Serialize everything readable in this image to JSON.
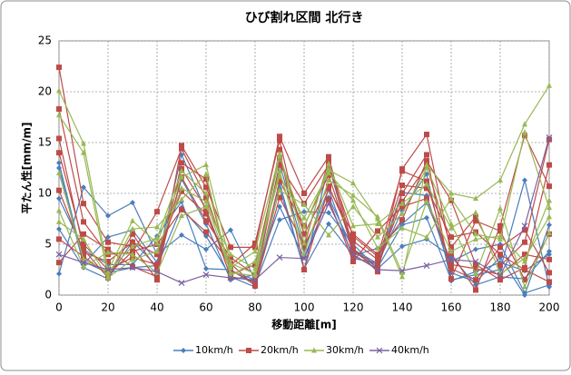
{
  "chart_data": {
    "type": "line",
    "title": "ひび割れ区間 北行き",
    "x_label": "移動距離[m]",
    "y_label": "平たん性[mm/m]",
    "x": [
      0,
      10,
      20,
      30,
      40,
      50,
      60,
      70,
      80,
      90,
      100,
      110,
      120,
      130,
      140,
      150,
      160,
      170,
      180,
      190,
      200
    ],
    "xlim": [
      0,
      200
    ],
    "xticks": [
      0,
      20,
      40,
      60,
      80,
      100,
      120,
      140,
      160,
      180,
      200
    ],
    "ylim": [
      0,
      25
    ],
    "yticks": [
      0,
      5,
      10,
      15,
      20,
      25
    ],
    "grid": true,
    "legend": "bottom",
    "series": [
      {
        "name": "10km/h",
        "color": "#4a7ebb",
        "marker": "diamond",
        "runs": [
          [
            2.1,
            10.6,
            7.8,
            9.1,
            4.0,
            5.9,
            4.5,
            6.4,
            1.5,
            11.0,
            2.5,
            12.8,
            4.3,
            2.7,
            6.9,
            7.6,
            1.5,
            2.0,
            2.5,
            11.3,
            0.8
          ],
          [
            12.5,
            3.0,
            5.7,
            6.4,
            3.2,
            13.8,
            8.3,
            2.4,
            1.5,
            12.9,
            4.5,
            10.4,
            3.6,
            3.2,
            10.1,
            9.8,
            2.2,
            1.3,
            3.7,
            0.0,
            6.9
          ],
          [
            9.5,
            4.5,
            3.0,
            3.0,
            5.8,
            9.2,
            2.6,
            2.5,
            1.0,
            7.4,
            8.2,
            8.1,
            5.0,
            2.6,
            4.8,
            5.5,
            3.8,
            1.0,
            1.8,
            1.6,
            4.3
          ],
          [
            6.5,
            2.7,
            1.6,
            5.3,
            2.8,
            8.6,
            5.8,
            1.8,
            0.8,
            10.5,
            2.6,
            7.0,
            3.9,
            4.6,
            7.0,
            9.1,
            3.3,
            4.5,
            5.0,
            0.2,
            1.0
          ],
          [
            13.0,
            3.3,
            2.2,
            2.7,
            2.9,
            11.4,
            7.0,
            1.5,
            2.0,
            8.7,
            3.7,
            9.6,
            4.5,
            3.1,
            8.3,
            11.9,
            1.4,
            2.3,
            3.2,
            2.4,
            4.0
          ]
        ]
      },
      {
        "name": "20km/h",
        "color": "#be4b48",
        "marker": "square",
        "runs": [
          [
            22.4,
            9.0,
            5.2,
            4.8,
            1.5,
            14.7,
            10.6,
            4.7,
            4.7,
            15.6,
            10.0,
            13.6,
            4.6,
            2.3,
            12.4,
            15.8,
            4.1,
            0.5,
            6.8,
            15.7,
            10.7
          ],
          [
            18.3,
            7.2,
            4.0,
            4.2,
            8.2,
            14.4,
            9.6,
            2.9,
            5.1,
            15.2,
            4.8,
            13.2,
            3.9,
            2.6,
            10.0,
            13.8,
            1.6,
            7.3,
            6.3,
            1.5,
            6.0
          ],
          [
            15.4,
            4.5,
            1.7,
            6.0,
            2.5,
            11.6,
            7.3,
            3.7,
            2.0,
            14.3,
            2.5,
            10.5,
            6.0,
            4.0,
            7.4,
            13.2,
            9.3,
            3.0,
            1.5,
            2.7,
            12.8
          ],
          [
            14.0,
            5.0,
            2.5,
            3.7,
            3.0,
            12.4,
            8.5,
            1.8,
            1.4,
            12.8,
            9.0,
            12.8,
            5.8,
            3.8,
            12.2,
            11.2,
            2.6,
            1.5,
            4.7,
            6.4,
            2.2
          ],
          [
            10.3,
            4.2,
            3.3,
            5.2,
            4.0,
            10.2,
            8.0,
            2.4,
            1.2,
            11.2,
            6.8,
            11.8,
            4.4,
            2.9,
            9.2,
            12.7,
            4.7,
            7.7,
            2.9,
            5.2,
            15.3
          ],
          [
            5.5,
            3.8,
            2.0,
            4.3,
            5.0,
            8.4,
            6.2,
            3.1,
            0.9,
            9.6,
            4.9,
            9.4,
            3.3,
            6.3,
            8.7,
            9.5,
            3.0,
            2.6,
            2.0,
            4.0,
            3.5
          ],
          [
            3.2,
            6.0,
            4.5,
            2.8,
            1.8,
            13.0,
            11.4,
            2.0,
            3.0,
            13.5,
            6.0,
            10.7,
            5.3,
            3.5,
            10.8,
            10.5,
            5.7,
            6.2,
            4.0,
            2.5,
            1.3
          ]
        ]
      },
      {
        "name": "30km/h",
        "color": "#98b954",
        "marker": "triangle",
        "runs": [
          [
            20.1,
            14.9,
            2.4,
            7.3,
            5.1,
            11.6,
            12.8,
            3.1,
            2.1,
            13.7,
            6.7,
            12.3,
            11.0,
            7.5,
            1.8,
            12.8,
            10.0,
            9.5,
            11.3,
            16.8,
            20.6
          ],
          [
            17.7,
            14.0,
            1.8,
            6.5,
            6.7,
            9.4,
            11.9,
            1.9,
            3.3,
            11.7,
            7.6,
            12.0,
            9.3,
            4.6,
            6.6,
            5.7,
            9.5,
            6.0,
            5.5,
            16.0,
            8.6
          ],
          [
            12.0,
            3.5,
            2.3,
            4.8,
            5.6,
            12.2,
            10.0,
            2.7,
            4.3,
            13.9,
            5.1,
            12.9,
            6.8,
            7.0,
            9.0,
            10.9,
            6.6,
            8.1,
            2.1,
            3.6,
            7.7
          ],
          [
            7.2,
            5.5,
            1.7,
            3.5,
            4.3,
            10.5,
            9.2,
            2.2,
            1.9,
            10.3,
            8.9,
            5.9,
            8.7,
            5.7,
            8.0,
            12.5,
            7.0,
            2.1,
            8.5,
            0.8,
            6.1
          ],
          [
            8.3,
            2.8,
            4.2,
            4.0,
            2.2,
            7.8,
            8.7,
            4.0,
            2.6,
            12.2,
            4.0,
            11.3,
            9.8,
            7.7,
            2.2,
            9.2,
            4.3,
            5.5,
            5.8,
            3.3,
            9.3
          ]
        ]
      },
      {
        "name": "40km/h",
        "color": "#7d60a0",
        "marker": "x",
        "runs": [
          [
            4.0,
            3.2,
            2.5,
            2.7,
            2.3,
            1.2,
            2.0,
            1.7,
            1.5,
            3.7,
            3.6,
            9.0,
            4.0,
            2.5,
            2.4,
            2.9,
            3.5,
            3.3,
            1.9,
            6.8,
            15.5
          ]
        ]
      }
    ]
  }
}
